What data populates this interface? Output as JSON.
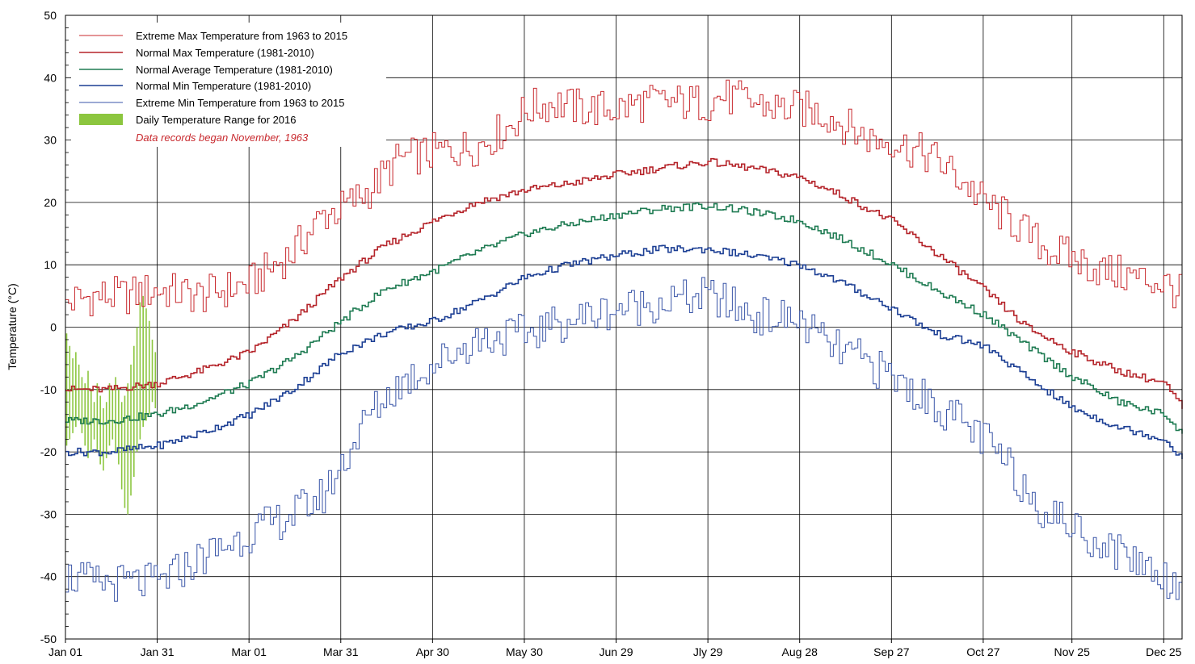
{
  "chart_data": {
    "type": "line",
    "title": "",
    "xlabel": "",
    "ylabel": "Temperature (°C)",
    "ylim": [
      -50,
      50
    ],
    "xlim_days": [
      1,
      366
    ],
    "y_ticks": [
      50,
      40,
      30,
      20,
      10,
      0,
      -10,
      -20,
      -30,
      -40,
      -50
    ],
    "y_tick_labels": [
      "50",
      "40",
      "30",
      "20",
      "10",
      "0",
      "-10",
      "-20",
      "-30",
      "-40",
      "-50"
    ],
    "x_ticks": [
      {
        "label": "Jan 01",
        "day": 1
      },
      {
        "label": "Jan 31",
        "day": 31
      },
      {
        "label": "Mar 01",
        "day": 61
      },
      {
        "label": "Mar 31",
        "day": 91
      },
      {
        "label": "Apr 30",
        "day": 121
      },
      {
        "label": "May 30",
        "day": 151
      },
      {
        "label": "Jun 29",
        "day": 181
      },
      {
        "label": "Jly 29",
        "day": 211
      },
      {
        "label": "Aug 28",
        "day": 241
      },
      {
        "label": "Sep 27",
        "day": 271
      },
      {
        "label": "Oct 27",
        "day": 301
      },
      {
        "label": "Nov 25",
        "day": 330
      },
      {
        "label": "Dec 25",
        "day": 360
      }
    ],
    "grid": true,
    "legend_position": "top-left",
    "note": "Data records began November, 1963",
    "note_color": "#c8282d",
    "series": [
      {
        "name": "Extreme Max Temperature from 1963 to 2015",
        "color": "#c8282d",
        "style": "thin",
        "x": [
          1,
          10,
          20,
          31,
          45,
          61,
          75,
          85,
          91,
          100,
          110,
          121,
          135,
          145,
          152,
          160,
          170,
          181,
          190,
          200,
          211,
          215,
          225,
          235,
          241,
          250,
          260,
          265,
          271,
          275,
          285,
          295,
          301,
          310,
          320,
          330,
          340,
          350,
          360,
          366
        ],
        "y": [
          4,
          5,
          5,
          6,
          5,
          7,
          12,
          18,
          19,
          22,
          27,
          28,
          29,
          32,
          35,
          36,
          35,
          35,
          36,
          36,
          36,
          37,
          36,
          35,
          35,
          34,
          31,
          30,
          30,
          29,
          27,
          23,
          20,
          17,
          13,
          11,
          9,
          8,
          7,
          5
        ]
      },
      {
        "name": "Normal Max Temperature (1981-2010)",
        "color": "#b5242a",
        "style": "thick",
        "x": [
          1,
          15,
          31,
          45,
          61,
          75,
          91,
          105,
          121,
          135,
          151,
          165,
          181,
          195,
          211,
          225,
          241,
          255,
          271,
          285,
          301,
          315,
          330,
          345,
          360,
          366
        ],
        "y": [
          -10,
          -10,
          -9,
          -7,
          -4,
          1,
          8,
          13,
          17,
          20,
          22,
          23,
          24.5,
          25.5,
          26.5,
          25.5,
          24,
          21,
          17,
          12,
          6,
          0,
          -4,
          -7,
          -9,
          -13
        ]
      },
      {
        "name": "Normal Average Temperature (1981-2010)",
        "color": "#1e7b52",
        "style": "thick",
        "x": [
          1,
          15,
          31,
          45,
          61,
          75,
          91,
          105,
          121,
          135,
          151,
          165,
          181,
          195,
          211,
          225,
          241,
          255,
          271,
          285,
          301,
          315,
          330,
          345,
          360,
          366
        ],
        "y": [
          -15,
          -15,
          -14,
          -12,
          -9,
          -5,
          1,
          6,
          9,
          12,
          15,
          16.5,
          18,
          19,
          19.5,
          18.5,
          17,
          14,
          10,
          6,
          2,
          -3,
          -8,
          -12,
          -14,
          -17
        ]
      },
      {
        "name": "Normal Min Temperature (1981-2010)",
        "color": "#1c3f94",
        "style": "thick",
        "x": [
          1,
          15,
          31,
          45,
          61,
          75,
          91,
          105,
          121,
          135,
          151,
          165,
          181,
          195,
          211,
          225,
          241,
          255,
          271,
          285,
          301,
          315,
          330,
          345,
          360,
          366
        ],
        "y": [
          -20,
          -20,
          -19,
          -17,
          -14,
          -10,
          -4,
          -1,
          1,
          4,
          8,
          10,
          11.5,
          12.5,
          12.5,
          11.5,
          10,
          7,
          3,
          -1,
          -3,
          -8,
          -13,
          -16,
          -18,
          -21
        ]
      },
      {
        "name": "Extreme Min Temperature from 1963 to 2015",
        "color": "#3a56a8",
        "style": "thin",
        "x": [
          1,
          10,
          20,
          31,
          45,
          61,
          75,
          85,
          91,
          100,
          110,
          121,
          135,
          151,
          165,
          181,
          195,
          211,
          225,
          241,
          250,
          260,
          271,
          280,
          290,
          301,
          310,
          320,
          330,
          340,
          350,
          360,
          366
        ],
        "y": [
          -40,
          -41,
          -41,
          -41,
          -37,
          -33,
          -30,
          -27,
          -22,
          -14,
          -9,
          -6,
          -2,
          -1,
          1,
          3,
          4,
          5,
          2,
          1,
          -3,
          -5,
          -8,
          -11,
          -14,
          -18,
          -23,
          -29,
          -32,
          -35,
          -37,
          -40,
          -42
        ]
      }
    ],
    "range_series": {
      "name": "Daily Temperature Range for 2016",
      "color": "#8cc63f",
      "x": [
        1,
        2,
        3,
        4,
        5,
        6,
        7,
        8,
        9,
        10,
        11,
        12,
        13,
        14,
        15,
        16,
        17,
        18,
        19,
        20,
        21,
        22,
        23,
        24,
        25,
        26,
        27,
        28,
        29,
        30
      ],
      "low": [
        -19,
        -18,
        -17,
        -16,
        -15,
        -17,
        -19,
        -21,
        -20,
        -18,
        -20,
        -22,
        -23,
        -21,
        -19,
        -18,
        -20,
        -22,
        -26,
        -29,
        -30,
        -27,
        -24,
        -20,
        -18,
        -16,
        -15,
        -14,
        -12,
        -13
      ],
      "high": [
        -1,
        -3,
        -5,
        -4,
        -6,
        -8,
        -9,
        -7,
        -10,
        -12,
        -9,
        -11,
        -13,
        -12,
        -9,
        -10,
        -8,
        -10,
        -12,
        -11,
        -9,
        -6,
        -3,
        0,
        4,
        5,
        3,
        1,
        -2,
        -4
      ]
    }
  }
}
